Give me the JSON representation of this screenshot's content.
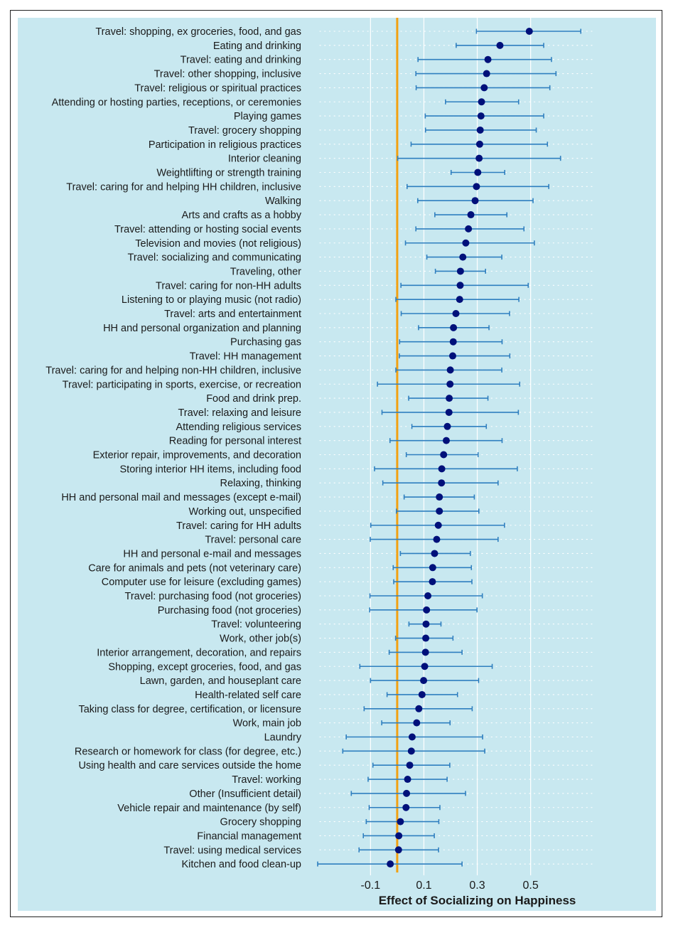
{
  "chart_data": {
    "type": "scatter",
    "subtype": "dot-and-whisker",
    "title": "",
    "xlabel": "Effect of Socializing on Happiness",
    "ylabel": "",
    "xticks": [
      -0.1,
      0.1,
      0.3,
      0.5
    ],
    "xtick_labels": [
      "-0.1",
      "0.1",
      "0.3",
      "0.5"
    ],
    "xlim": [
      -0.29,
      0.73
    ],
    "reference_line": 0.0,
    "grid": true,
    "colors": {
      "background": "#c8e8f0",
      "point": "#00107a",
      "errorbar": "#2f7fbf",
      "reference_line": "#f2a011",
      "gridline": "#ffffff"
    },
    "categories": [
      "Travel: shopping, ex groceries, food, and gas",
      "Eating and drinking",
      "Travel: eating and drinking",
      "Travel: other shopping, inclusive",
      "Travel: religious or spiritual practices",
      "Attending or hosting parties, receptions, or ceremonies",
      "Playing games",
      "Travel: grocery shopping",
      "Participation in religious practices",
      "Interior cleaning",
      "Weightlifting or strength training",
      "Travel: caring for and helping HH children, inclusive",
      "Walking",
      "Arts and crafts as a hobby",
      "Travel: attending or hosting social events",
      "Television and movies (not religious)",
      "Travel: socializing and communicating",
      "Traveling, other",
      "Travel: caring for non-HH adults",
      "Listening to or playing music (not radio)",
      "Travel: arts and entertainment",
      "HH and personal organization and planning",
      "Purchasing gas",
      "Travel: HH management",
      "Travel: caring for and helping non-HH children, inclusive",
      "Travel: participating in sports, exercise, or recreation",
      "Food and drink prep.",
      "Travel: relaxing and leisure",
      "Attending religious services",
      "Reading for personal interest",
      "Exterior repair, improvements, and decoration",
      "Storing interior HH items, including food",
      "Relaxing, thinking",
      "HH and personal mail and messages (except e-mail)",
      "Working out, unspecified",
      "Travel: caring for HH adults",
      "Travel: personal care",
      "HH and personal e-mail and messages",
      "Care for animals and pets (not veterinary care)",
      "Computer use for leisure (excluding games)",
      "Travel: purchasing food (not groceries)",
      "Purchasing food (not groceries)",
      "Travel: volunteering",
      "Work, other job(s)",
      "Interior arrangement, decoration, and repairs",
      "Shopping, except groceries, food, and gas",
      "Lawn, garden, and houseplant care",
      "Health-related self care",
      "Taking class for degree, certification, or licensure",
      "Work, main job",
      "Laundry",
      "Research or homework for class (for degree, etc.)",
      "Using health and care services outside the home",
      "Travel: working",
      "Other (Insufficient detail)",
      "Vehicle repair and maintenance (by self)",
      "Grocery shopping",
      "Financial management",
      "Travel: using medical services",
      "Kitchen and food clean-up"
    ],
    "values": [
      0.495,
      0.385,
      0.34,
      0.335,
      0.326,
      0.316,
      0.314,
      0.311,
      0.309,
      0.307,
      0.302,
      0.297,
      0.292,
      0.276,
      0.267,
      0.257,
      0.246,
      0.237,
      0.236,
      0.234,
      0.22,
      0.211,
      0.21,
      0.208,
      0.199,
      0.198,
      0.195,
      0.194,
      0.188,
      0.184,
      0.174,
      0.167,
      0.166,
      0.158,
      0.158,
      0.154,
      0.148,
      0.14,
      0.133,
      0.132,
      0.115,
      0.11,
      0.108,
      0.107,
      0.106,
      0.103,
      0.099,
      0.093,
      0.081,
      0.073,
      0.056,
      0.053,
      0.047,
      0.039,
      0.035,
      0.033,
      0.012,
      0.006,
      0.005,
      -0.026
    ],
    "ci_low": [
      0.297,
      0.221,
      0.078,
      0.07,
      0.071,
      0.181,
      0.105,
      0.106,
      0.052,
      0.002,
      0.202,
      0.037,
      0.077,
      0.141,
      0.07,
      0.031,
      0.111,
      0.143,
      0.014,
      -0.005,
      0.015,
      0.08,
      0.009,
      0.008,
      -0.005,
      -0.074,
      0.043,
      -0.057,
      0.055,
      -0.027,
      0.034,
      -0.085,
      -0.054,
      0.026,
      -0.003,
      -0.099,
      -0.101,
      0.012,
      -0.015,
      -0.013,
      -0.102,
      -0.103,
      0.044,
      -0.006,
      -0.03,
      -0.14,
      -0.1,
      -0.038,
      -0.124,
      -0.058,
      -0.191,
      -0.204,
      -0.091,
      -0.109,
      -0.172,
      -0.105,
      -0.116,
      -0.127,
      -0.143,
      -0.298
    ],
    "ci_high": [
      0.688,
      0.549,
      0.578,
      0.595,
      0.572,
      0.455,
      0.549,
      0.521,
      0.563,
      0.612,
      0.403,
      0.568,
      0.509,
      0.411,
      0.475,
      0.514,
      0.392,
      0.331,
      0.491,
      0.456,
      0.421,
      0.344,
      0.393,
      0.422,
      0.392,
      0.459,
      0.34,
      0.454,
      0.334,
      0.393,
      0.303,
      0.45,
      0.378,
      0.289,
      0.306,
      0.402,
      0.378,
      0.274,
      0.278,
      0.28,
      0.319,
      0.299,
      0.164,
      0.209,
      0.243,
      0.356,
      0.305,
      0.226,
      0.281,
      0.198,
      0.32,
      0.328,
      0.197,
      0.187,
      0.256,
      0.16,
      0.156,
      0.139,
      0.155,
      0.243
    ]
  }
}
